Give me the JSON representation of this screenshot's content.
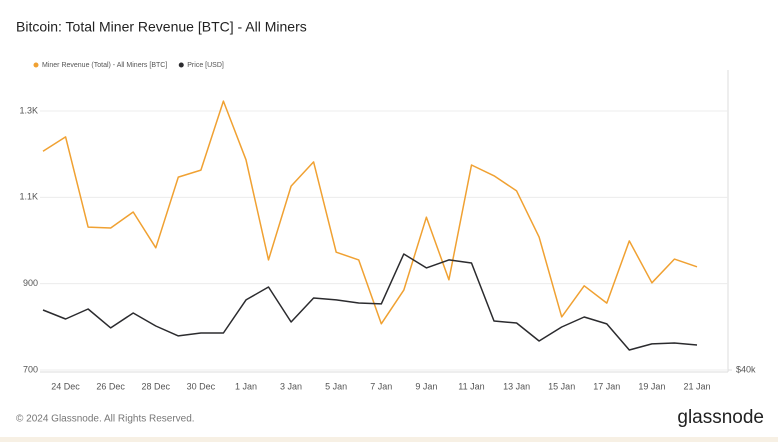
{
  "chart_data": {
    "type": "line",
    "title": "Bitcoin: Total Miner Revenue [BTC] - All Miners",
    "categories": [
      null,
      "24 Dec",
      null,
      "26 Dec",
      null,
      "28 Dec",
      null,
      "30 Dec",
      null,
      "1 Jan",
      null,
      "3 Jan",
      null,
      "5 Jan",
      null,
      "7 Jan",
      null,
      "9 Jan",
      null,
      "11 Jan",
      null,
      "13 Jan",
      null,
      "15 Jan",
      null,
      "17 Jan",
      null,
      "19 Jan",
      null,
      "21 Jan"
    ],
    "series": [
      {
        "name": "Miner Revenue (Total) - All Miners [BTC]",
        "color": "#f0a132",
        "values": [
          1207,
          1240,
          1031,
          1029,
          1066,
          983,
          1147,
          1163,
          1323,
          1187,
          955,
          1126,
          1182,
          973,
          955,
          807,
          885,
          1054,
          909,
          1175,
          1150,
          1115,
          1008,
          823,
          895,
          855,
          999,
          902,
          957,
          939
        ]
      },
      {
        "name": "Price [USD]",
        "color": "#2b2b2e",
        "axis": "y2",
        "values": [
          43750,
          43190,
          43810,
          42630,
          43560,
          42750,
          42130,
          42310,
          42310,
          44380,
          45190,
          43000,
          44500,
          44380,
          44190,
          44130,
          47250,
          46380,
          46880,
          46690,
          43060,
          42940,
          41810,
          42690,
          43310,
          42880,
          41250,
          41630,
          41690,
          41560
        ]
      }
    ],
    "ylim": [
      700,
      1395
    ],
    "yticks": [
      700,
      900,
      {
        "value": 1100,
        "label": "1.1K"
      },
      {
        "value": 1300,
        "label": "1.3K"
      }
    ],
    "y2lim": [
      40000,
      58750
    ],
    "y2ticks": [
      {
        "value": 40000,
        "label": "$40k"
      }
    ],
    "grid": true,
    "legend": "top",
    "footer": "© 2024 Glassnode. All Rights Reserved.",
    "brand": "glassnode"
  }
}
